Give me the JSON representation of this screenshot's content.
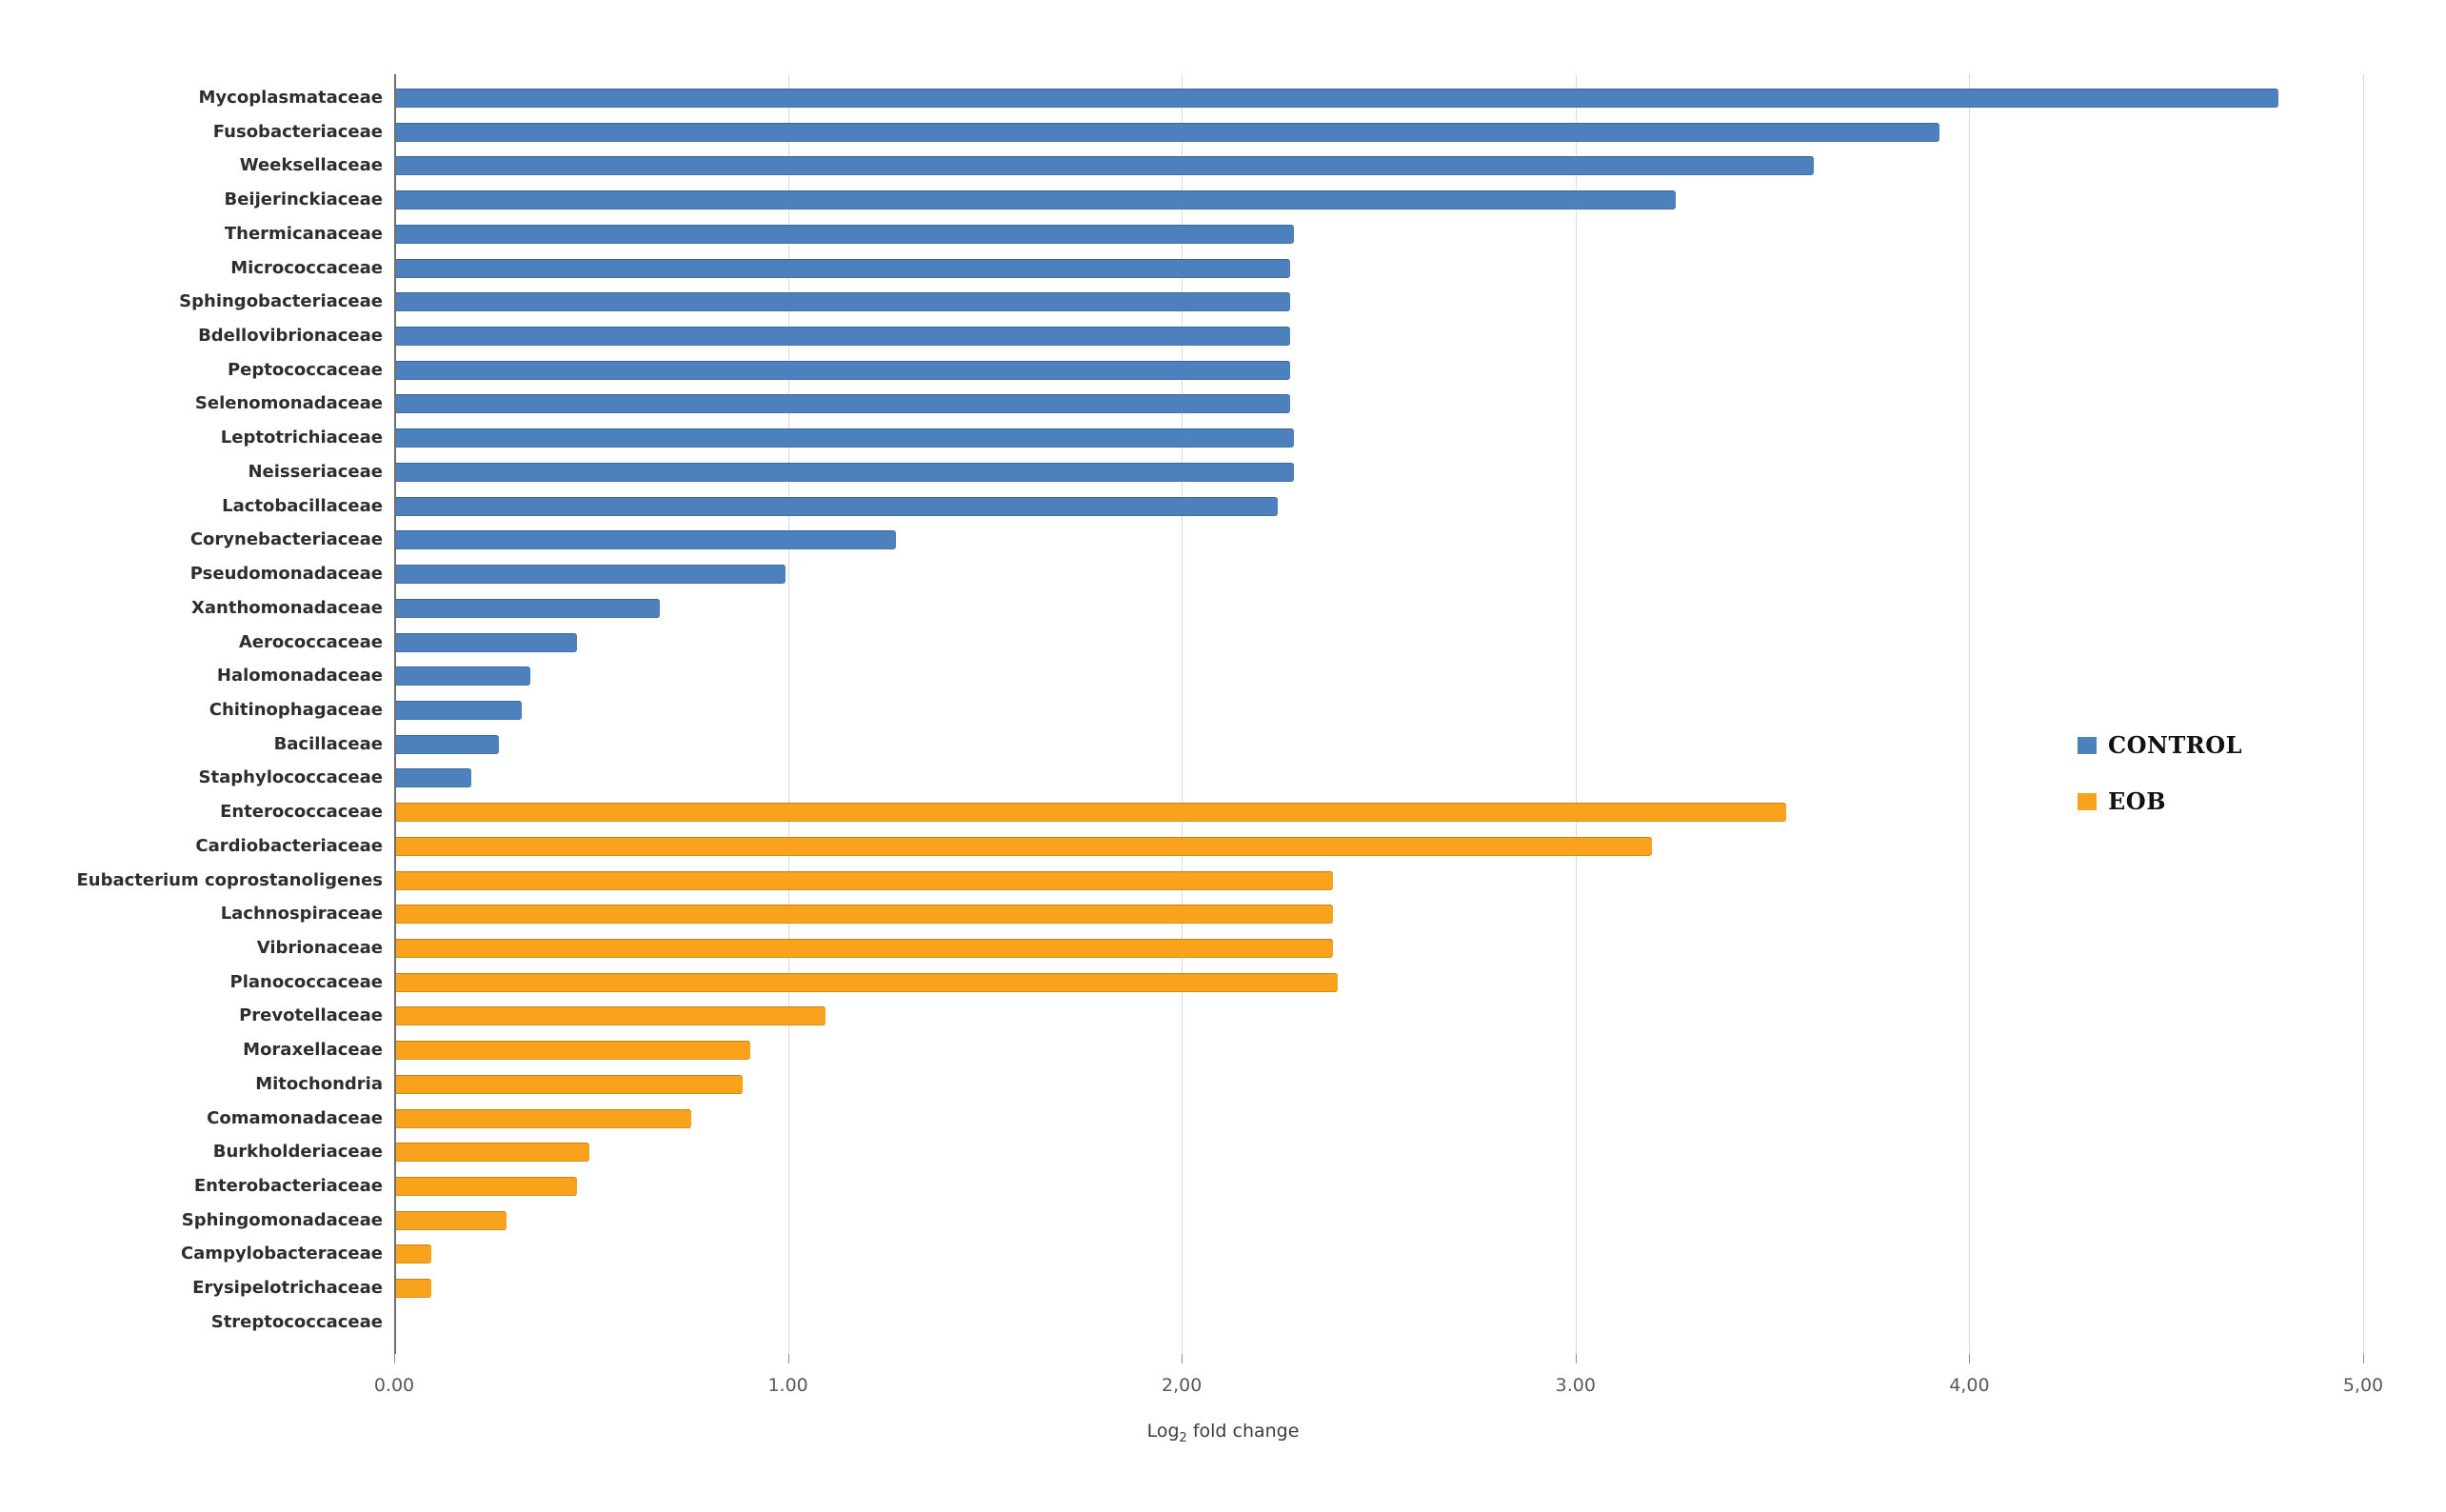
{
  "chart_data": {
    "type": "bar",
    "orientation": "horizontal",
    "title": "",
    "xlabel_parts": {
      "prefix": "Log",
      "subscript": "2",
      "suffix": " fold change"
    },
    "xlim": [
      0,
      5
    ],
    "grid": true,
    "x_ticks": [
      {
        "v": 0,
        "label": "0.00"
      },
      {
        "v": 1,
        "label": "1.00"
      },
      {
        "v": 2,
        "label": "2,00"
      },
      {
        "v": 3,
        "label": "3.00"
      },
      {
        "v": 4,
        "label": "4,00"
      },
      {
        "v": 5,
        "label": "5,00"
      }
    ],
    "legend": {
      "position": "right-middle",
      "entries": [
        {
          "name": "CONTROL",
          "color": "#4d81bd"
        },
        {
          "name": "EOB",
          "color": "#f9a21b"
        }
      ]
    },
    "series": [
      {
        "name": "CONTROL",
        "color": "#4d81bd",
        "bars": [
          {
            "label": "Mycoplasmataceae",
            "value": 4.78
          },
          {
            "label": "Fusobacteriaceae",
            "value": 3.92
          },
          {
            "label": "Weeksellaceae",
            "value": 3.6
          },
          {
            "label": "Beijerinckiaceae",
            "value": 3.25
          },
          {
            "label": "Thermicanaceae",
            "value": 2.28
          },
          {
            "label": "Micrococcaceae",
            "value": 2.27
          },
          {
            "label": "Sphingobacteriaceae",
            "value": 2.27
          },
          {
            "label": "Bdellovibrionaceae",
            "value": 2.27
          },
          {
            "label": "Peptococcaceae",
            "value": 2.27
          },
          {
            "label": "Selenomonadaceae",
            "value": 2.27
          },
          {
            "label": "Leptotrichiaceae",
            "value": 2.28
          },
          {
            "label": "Neisseriaceae",
            "value": 2.28
          },
          {
            "label": "Lactobacillaceae",
            "value": 2.24
          },
          {
            "label": "Corynebacteriaceae",
            "value": 1.27
          },
          {
            "label": "Pseudomonadaceae",
            "value": 0.99
          },
          {
            "label": "Xanthomonadaceae",
            "value": 0.67
          },
          {
            "label": "Aerococcaceae",
            "value": 0.46
          },
          {
            "label": "Halomonadaceae",
            "value": 0.34
          },
          {
            "label": "Chitinophagaceae",
            "value": 0.32
          },
          {
            "label": "Bacillaceae",
            "value": 0.26
          },
          {
            "label": "Staphylococcaceae",
            "value": 0.19
          }
        ]
      },
      {
        "name": "EOB",
        "color": "#f9a21b",
        "bars": [
          {
            "label": "Enterococcaceae",
            "value": 3.53
          },
          {
            "label": "Cardiobacteriaceae",
            "value": 3.19
          },
          {
            "label": "Eubacterium coprostanoligenes",
            "value": 2.38
          },
          {
            "label": "Lachnospiraceae",
            "value": 2.38
          },
          {
            "label": "Vibrionaceae",
            "value": 2.38
          },
          {
            "label": "Planococcaceae",
            "value": 2.39
          },
          {
            "label": "Prevotellaceae",
            "value": 1.09
          },
          {
            "label": "Moraxellaceae",
            "value": 0.9
          },
          {
            "label": "Mitochondria",
            "value": 0.88
          },
          {
            "label": "Comamonadaceae",
            "value": 0.75
          },
          {
            "label": "Burkholderiaceae",
            "value": 0.49
          },
          {
            "label": "Enterobacteriaceae",
            "value": 0.46
          },
          {
            "label": "Sphingomonadaceae",
            "value": 0.28
          },
          {
            "label": "Campylobacteraceae",
            "value": 0.09
          },
          {
            "label": "Erysipelotrichaceae",
            "value": 0.09
          },
          {
            "label": "Streptococcaceae",
            "value": 0.0
          }
        ]
      }
    ]
  }
}
